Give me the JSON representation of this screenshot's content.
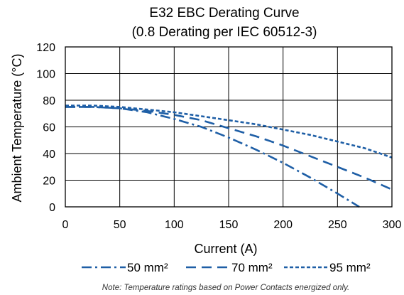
{
  "chart_data": {
    "type": "line",
    "title": "E32 EBC Derating Curve",
    "subtitle": "(0.8 Derating per IEC 60512-3)",
    "xlabel": "Current (A)",
    "ylabel": "Ambient Temperature (°C)",
    "xlim": [
      0,
      300
    ],
    "ylim": [
      0,
      120
    ],
    "xticks": [
      "0",
      "50",
      "100",
      "150",
      "200",
      "250",
      "300"
    ],
    "yticks": [
      "0",
      "20",
      "40",
      "60",
      "80",
      "100",
      "120"
    ],
    "grid": true,
    "legend_position": "bottom",
    "series": [
      {
        "name": "50 mm²",
        "style": "dash-dot",
        "color": "#1f5fa6",
        "x": [
          0,
          25,
          50,
          75,
          100,
          125,
          150,
          175,
          200,
          225,
          250,
          270
        ],
        "y": [
          75,
          75,
          74,
          71,
          66,
          60,
          52,
          43,
          33,
          22,
          10,
          0
        ]
      },
      {
        "name": "70 mm²",
        "style": "dash",
        "color": "#1f5fa6",
        "x": [
          0,
          25,
          50,
          75,
          100,
          125,
          150,
          175,
          200,
          225,
          250,
          275,
          300
        ],
        "y": [
          75,
          75,
          74,
          72,
          69,
          65,
          59,
          53,
          46,
          38,
          30,
          22,
          13
        ]
      },
      {
        "name": "95 mm²",
        "style": "dot",
        "color": "#1f5fa6",
        "x": [
          0,
          25,
          50,
          75,
          100,
          125,
          150,
          175,
          200,
          225,
          250,
          275,
          300
        ],
        "y": [
          76,
          76,
          75,
          73,
          71,
          68,
          65,
          62,
          58,
          54,
          49,
          44,
          37
        ]
      }
    ],
    "note": "Note: Temperature ratings based on Power Contacts energized only."
  }
}
